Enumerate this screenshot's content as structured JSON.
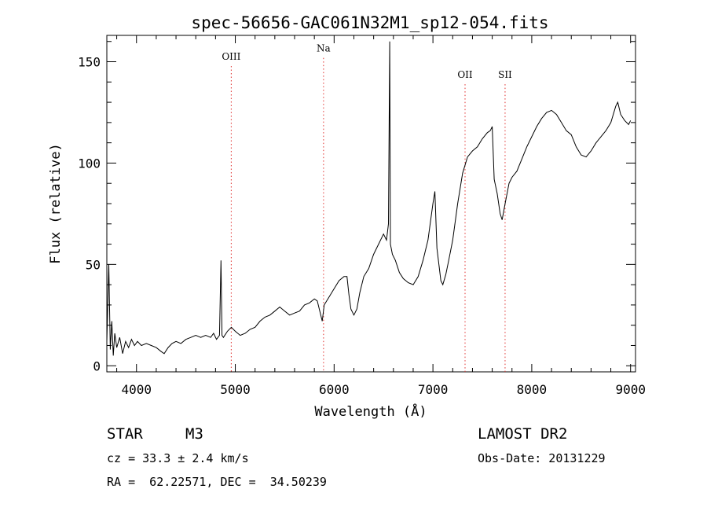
{
  "chart_data": {
    "type": "line",
    "title": "spec-56656-GAC061N32M1_sp12-054.fits",
    "xlabel": "Wavelength (Å)",
    "ylabel": "Flux (relative)",
    "xlim": [
      3700,
      9050
    ],
    "ylim": [
      -3,
      163
    ],
    "xticks": [
      4000,
      5000,
      6000,
      7000,
      8000,
      9000
    ],
    "yticks": [
      0,
      50,
      100,
      150
    ],
    "grid": false,
    "lines": [
      {
        "label": "OIII",
        "x": 4959,
        "label_y": 151
      },
      {
        "label": "Na",
        "x": 5893,
        "label_y": 155
      },
      {
        "label": "OII",
        "x": 7325,
        "label_y": 142
      },
      {
        "label": "SII",
        "x": 7730,
        "label_y": 142
      }
    ],
    "spectrum": [
      [
        3700,
        12
      ],
      [
        3720,
        50
      ],
      [
        3735,
        8
      ],
      [
        3750,
        22
      ],
      [
        3765,
        5
      ],
      [
        3780,
        16
      ],
      [
        3800,
        9
      ],
      [
        3830,
        14
      ],
      [
        3860,
        6
      ],
      [
        3890,
        12
      ],
      [
        3920,
        9
      ],
      [
        3950,
        13
      ],
      [
        3980,
        10
      ],
      [
        4010,
        12
      ],
      [
        4050,
        10
      ],
      [
        4100,
        11
      ],
      [
        4150,
        10
      ],
      [
        4200,
        9
      ],
      [
        4250,
        7
      ],
      [
        4280,
        6
      ],
      [
        4320,
        9
      ],
      [
        4360,
        11
      ],
      [
        4400,
        12
      ],
      [
        4450,
        11
      ],
      [
        4500,
        13
      ],
      [
        4550,
        14
      ],
      [
        4600,
        15
      ],
      [
        4650,
        14
      ],
      [
        4700,
        15
      ],
      [
        4750,
        14
      ],
      [
        4780,
        16
      ],
      [
        4810,
        13
      ],
      [
        4840,
        15
      ],
      [
        4855,
        52
      ],
      [
        4865,
        15
      ],
      [
        4880,
        14
      ],
      [
        4920,
        17
      ],
      [
        4960,
        19
      ],
      [
        5000,
        17
      ],
      [
        5050,
        15
      ],
      [
        5100,
        16
      ],
      [
        5150,
        18
      ],
      [
        5200,
        19
      ],
      [
        5250,
        22
      ],
      [
        5300,
        24
      ],
      [
        5350,
        25
      ],
      [
        5400,
        27
      ],
      [
        5450,
        29
      ],
      [
        5500,
        27
      ],
      [
        5550,
        25
      ],
      [
        5600,
        26
      ],
      [
        5650,
        27
      ],
      [
        5700,
        30
      ],
      [
        5750,
        31
      ],
      [
        5800,
        33
      ],
      [
        5830,
        32
      ],
      [
        5860,
        26
      ],
      [
        5880,
        22
      ],
      [
        5900,
        30
      ],
      [
        5950,
        34
      ],
      [
        6000,
        38
      ],
      [
        6050,
        42
      ],
      [
        6100,
        44
      ],
      [
        6130,
        44
      ],
      [
        6150,
        35
      ],
      [
        6170,
        28
      ],
      [
        6200,
        25
      ],
      [
        6230,
        28
      ],
      [
        6260,
        36
      ],
      [
        6300,
        44
      ],
      [
        6350,
        48
      ],
      [
        6400,
        55
      ],
      [
        6450,
        60
      ],
      [
        6500,
        65
      ],
      [
        6530,
        62
      ],
      [
        6550,
        70
      ],
      [
        6563,
        160
      ],
      [
        6570,
        60
      ],
      [
        6590,
        55
      ],
      [
        6620,
        52
      ],
      [
        6660,
        46
      ],
      [
        6700,
        43
      ],
      [
        6750,
        41
      ],
      [
        6800,
        40
      ],
      [
        6850,
        44
      ],
      [
        6900,
        52
      ],
      [
        6950,
        62
      ],
      [
        7000,
        80
      ],
      [
        7020,
        86
      ],
      [
        7040,
        58
      ],
      [
        7060,
        50
      ],
      [
        7080,
        42
      ],
      [
        7100,
        40
      ],
      [
        7130,
        45
      ],
      [
        7160,
        52
      ],
      [
        7200,
        62
      ],
      [
        7250,
        80
      ],
      [
        7300,
        95
      ],
      [
        7350,
        103
      ],
      [
        7400,
        106
      ],
      [
        7450,
        108
      ],
      [
        7500,
        112
      ],
      [
        7550,
        115
      ],
      [
        7580,
        116
      ],
      [
        7600,
        118
      ],
      [
        7620,
        92
      ],
      [
        7650,
        85
      ],
      [
        7680,
        75
      ],
      [
        7700,
        72
      ],
      [
        7730,
        80
      ],
      [
        7770,
        90
      ],
      [
        7800,
        93
      ],
      [
        7850,
        96
      ],
      [
        7900,
        102
      ],
      [
        7950,
        108
      ],
      [
        8000,
        113
      ],
      [
        8050,
        118
      ],
      [
        8100,
        122
      ],
      [
        8150,
        125
      ],
      [
        8200,
        126
      ],
      [
        8250,
        124
      ],
      [
        8300,
        120
      ],
      [
        8350,
        116
      ],
      [
        8400,
        114
      ],
      [
        8450,
        108
      ],
      [
        8500,
        104
      ],
      [
        8550,
        103
      ],
      [
        8600,
        106
      ],
      [
        8650,
        110
      ],
      [
        8700,
        113
      ],
      [
        8750,
        116
      ],
      [
        8800,
        120
      ],
      [
        8850,
        128
      ],
      [
        8870,
        130
      ],
      [
        8900,
        124
      ],
      [
        8940,
        121
      ],
      [
        8980,
        119
      ],
      [
        9000,
        121
      ]
    ]
  },
  "info": {
    "object_class": "STAR",
    "subclass": "M3",
    "survey": "LAMOST DR2",
    "redshift": "cz = 33.3 ± 2.4 km/s",
    "obs_date": "Obs-Date: 20131229",
    "coords": "RA =  62.22571, DEC =  34.50239"
  }
}
